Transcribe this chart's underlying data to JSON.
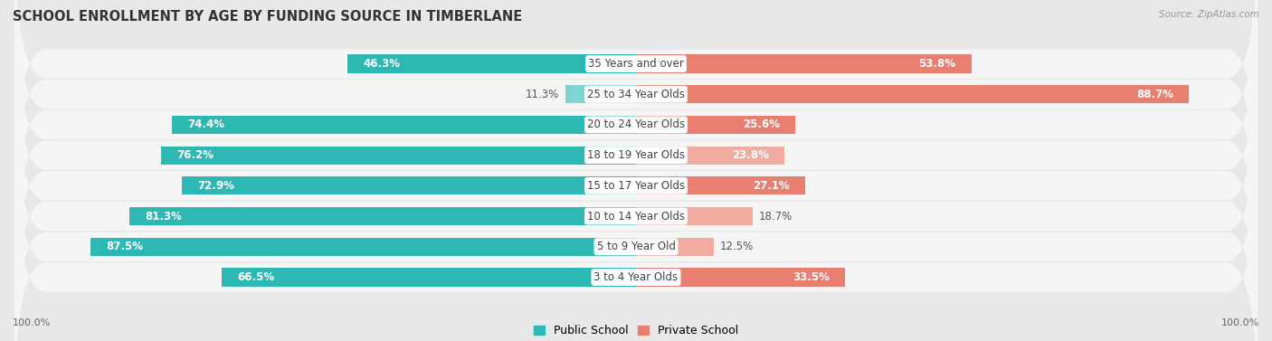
{
  "title": "SCHOOL ENROLLMENT BY AGE BY FUNDING SOURCE IN TIMBERLANE",
  "source": "Source: ZipAtlas.com",
  "categories": [
    "3 to 4 Year Olds",
    "5 to 9 Year Old",
    "10 to 14 Year Olds",
    "15 to 17 Year Olds",
    "18 to 19 Year Olds",
    "20 to 24 Year Olds",
    "25 to 34 Year Olds",
    "35 Years and over"
  ],
  "public_values": [
    66.5,
    87.5,
    81.3,
    72.9,
    76.2,
    74.4,
    11.3,
    46.3
  ],
  "private_values": [
    33.5,
    12.5,
    18.7,
    27.1,
    23.8,
    25.6,
    88.7,
    53.8
  ],
  "public_color_dark": "#2eb8b4",
  "public_color_light": "#7dd6d3",
  "private_color_dark": "#e87f70",
  "private_color_light": "#f0aca0",
  "bg_color": "#e8e8e8",
  "row_bg": "#f5f5f5",
  "title_color": "#333333",
  "label_color": "#444444",
  "value_color_white": "#ffffff",
  "value_color_dark": "#555555",
  "source_color": "#999999",
  "axis_tick_color": "#666666",
  "title_fontsize": 10.5,
  "bar_label_fontsize": 8.5,
  "cat_label_fontsize": 8.5,
  "legend_fontsize": 9,
  "axis_fontsize": 8,
  "bar_height": 0.6,
  "x_left_label": "100.0%",
  "x_right_label": "100.0%",
  "xlim": 100
}
